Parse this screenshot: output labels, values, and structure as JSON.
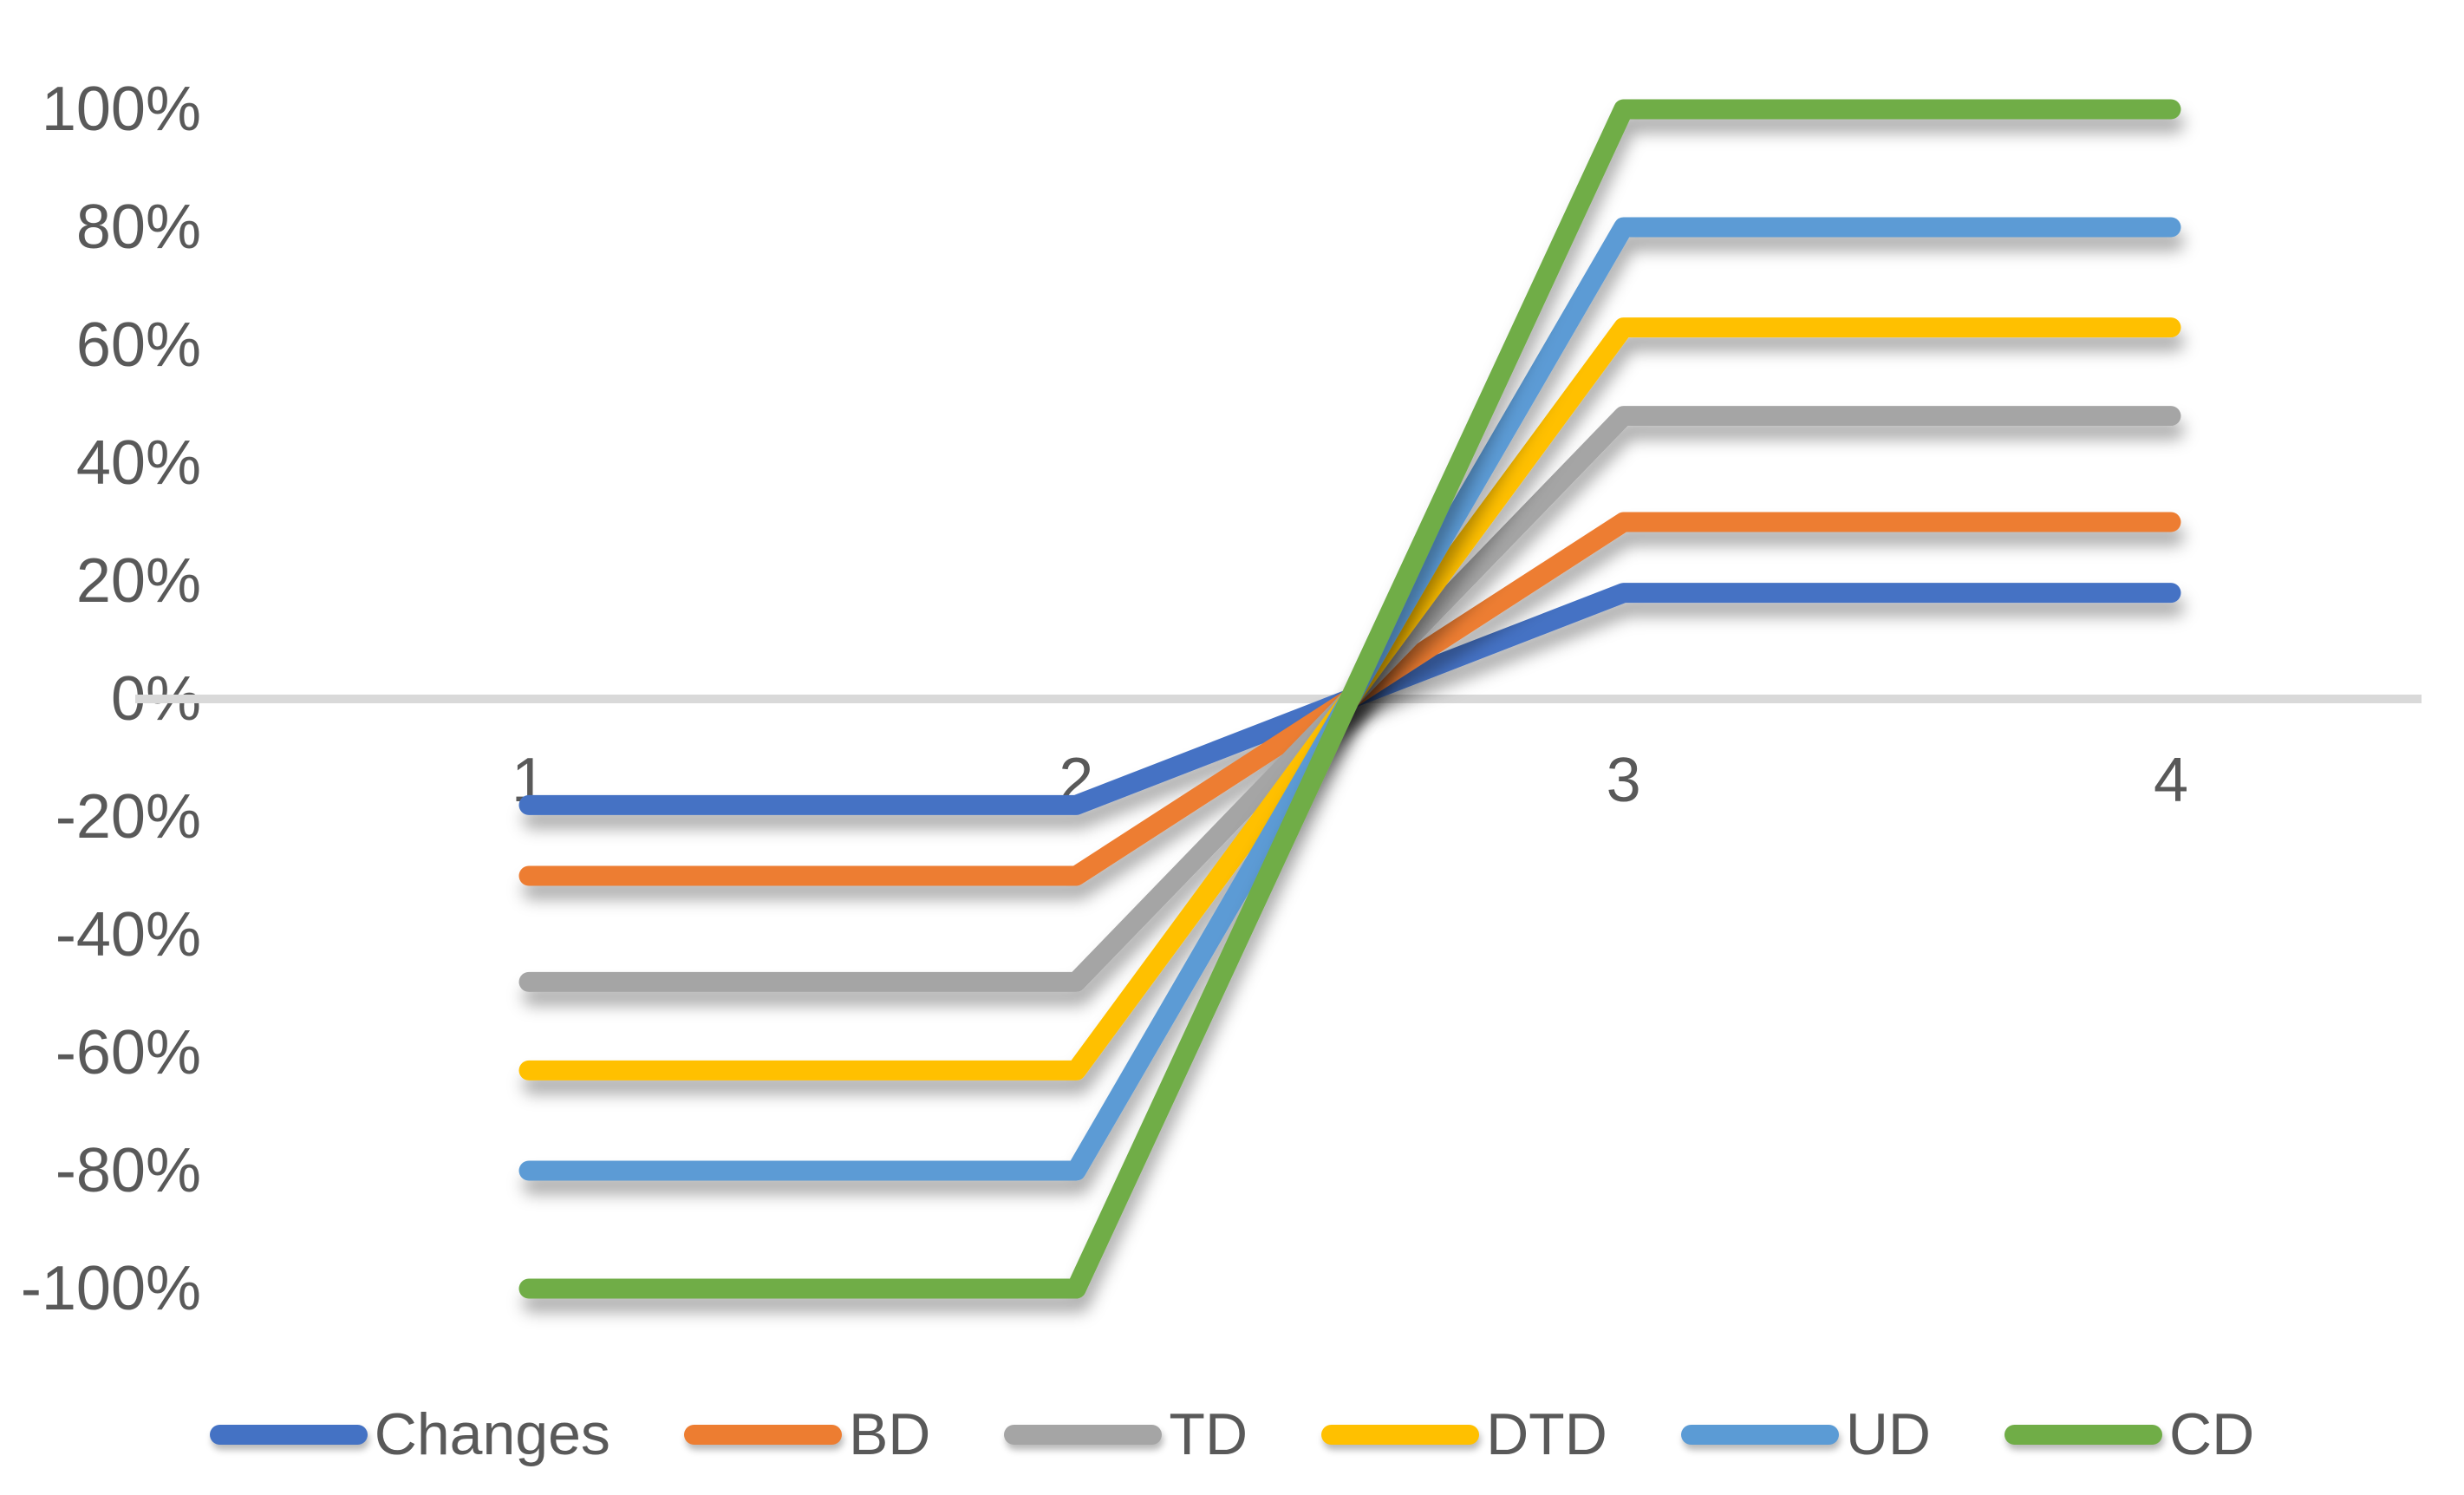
{
  "chart_data": {
    "type": "line",
    "title": "",
    "categories": [
      "1",
      "2",
      "3",
      "4"
    ],
    "series": [
      {
        "name": "Changes",
        "color": "#4472C4",
        "values": [
          -18,
          -18,
          18,
          18
        ]
      },
      {
        "name": "BD",
        "color": "#ED7D31",
        "values": [
          -30,
          -30,
          30,
          30
        ]
      },
      {
        "name": "TD",
        "color": "#A5A5A5",
        "values": [
          -48,
          -48,
          48,
          48
        ]
      },
      {
        "name": "DTD",
        "color": "#FFC000",
        "values": [
          -63,
          -63,
          63,
          63
        ]
      },
      {
        "name": "UD",
        "color": "#5B9BD5",
        "values": [
          -80,
          -80,
          80,
          80
        ]
      },
      {
        "name": "CD",
        "color": "#70AD47",
        "values": [
          -100,
          -100,
          100,
          100
        ]
      }
    ],
    "x_axis": {
      "labels": [
        "1",
        "2",
        "3",
        "4"
      ]
    },
    "y_axis": {
      "min": -100,
      "max": 100,
      "ticks": [
        {
          "value": 100,
          "label": "100%"
        },
        {
          "value": 80,
          "label": "80%"
        },
        {
          "value": 60,
          "label": "60%"
        },
        {
          "value": 40,
          "label": "40%"
        },
        {
          "value": 20,
          "label": "20%"
        },
        {
          "value": 0,
          "label": "0%"
        },
        {
          "value": -20,
          "label": "-20%"
        },
        {
          "value": -40,
          "label": "-40%"
        },
        {
          "value": -60,
          "label": "-60%"
        },
        {
          "value": -80,
          "label": "-80%"
        },
        {
          "value": -100,
          "label": "-100%"
        }
      ]
    },
    "legend": {
      "position": "bottom",
      "entries": [
        "Changes",
        "BD",
        "TD",
        "DTD",
        "UD",
        "CD"
      ]
    },
    "grid": false,
    "colors": {
      "axis_line": "#D9D9D9",
      "text": "#595959",
      "background": "#FFFFFF"
    }
  }
}
